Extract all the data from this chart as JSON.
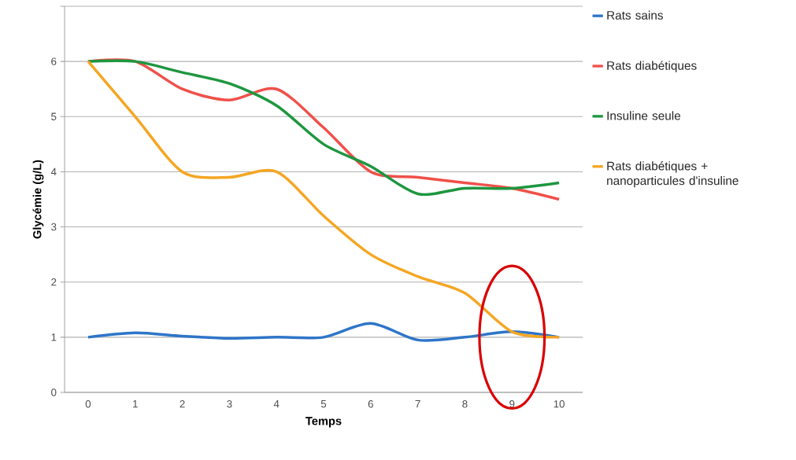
{
  "chart_data": {
    "type": "line",
    "xlabel": "Temps",
    "ylabel": "Glycémie (g/L)",
    "categories": [
      "0",
      "1",
      "2",
      "3",
      "4",
      "5",
      "6",
      "7",
      "8",
      "9",
      "10"
    ],
    "ylim": [
      0,
      7
    ],
    "yticks": [
      0,
      1,
      2,
      3,
      4,
      5,
      6,
      {
        "value": 7,
        "label": null
      }
    ],
    "grid": "y",
    "legend": "right",
    "marker": "none",
    "line_style": "solid",
    "series": [
      {
        "name": "Rats sains",
        "color": "#2e75c8",
        "values": [
          1.0,
          1.08,
          1.02,
          0.98,
          1.0,
          1.0,
          1.25,
          0.95,
          1.0,
          1.1,
          1.0
        ]
      },
      {
        "name": "Rats diabétiques",
        "color": "#f0504a",
        "values": [
          6.0,
          6.0,
          5.5,
          5.3,
          5.5,
          4.8,
          4.0,
          3.9,
          3.8,
          3.7,
          3.5
        ]
      },
      {
        "name": "Insuline seule",
        "color": "#1e9640",
        "values": [
          6.0,
          6.0,
          5.8,
          5.6,
          5.2,
          4.5,
          4.1,
          3.6,
          3.7,
          3.7,
          3.8
        ]
      },
      {
        "name": "Rats diabétiques + nanoparticules d'insuline",
        "color": "#f5a623",
        "values": [
          6.0,
          5.0,
          4.0,
          3.9,
          4.0,
          3.2,
          2.5,
          2.1,
          1.8,
          1.1,
          1.0
        ]
      }
    ]
  }
}
